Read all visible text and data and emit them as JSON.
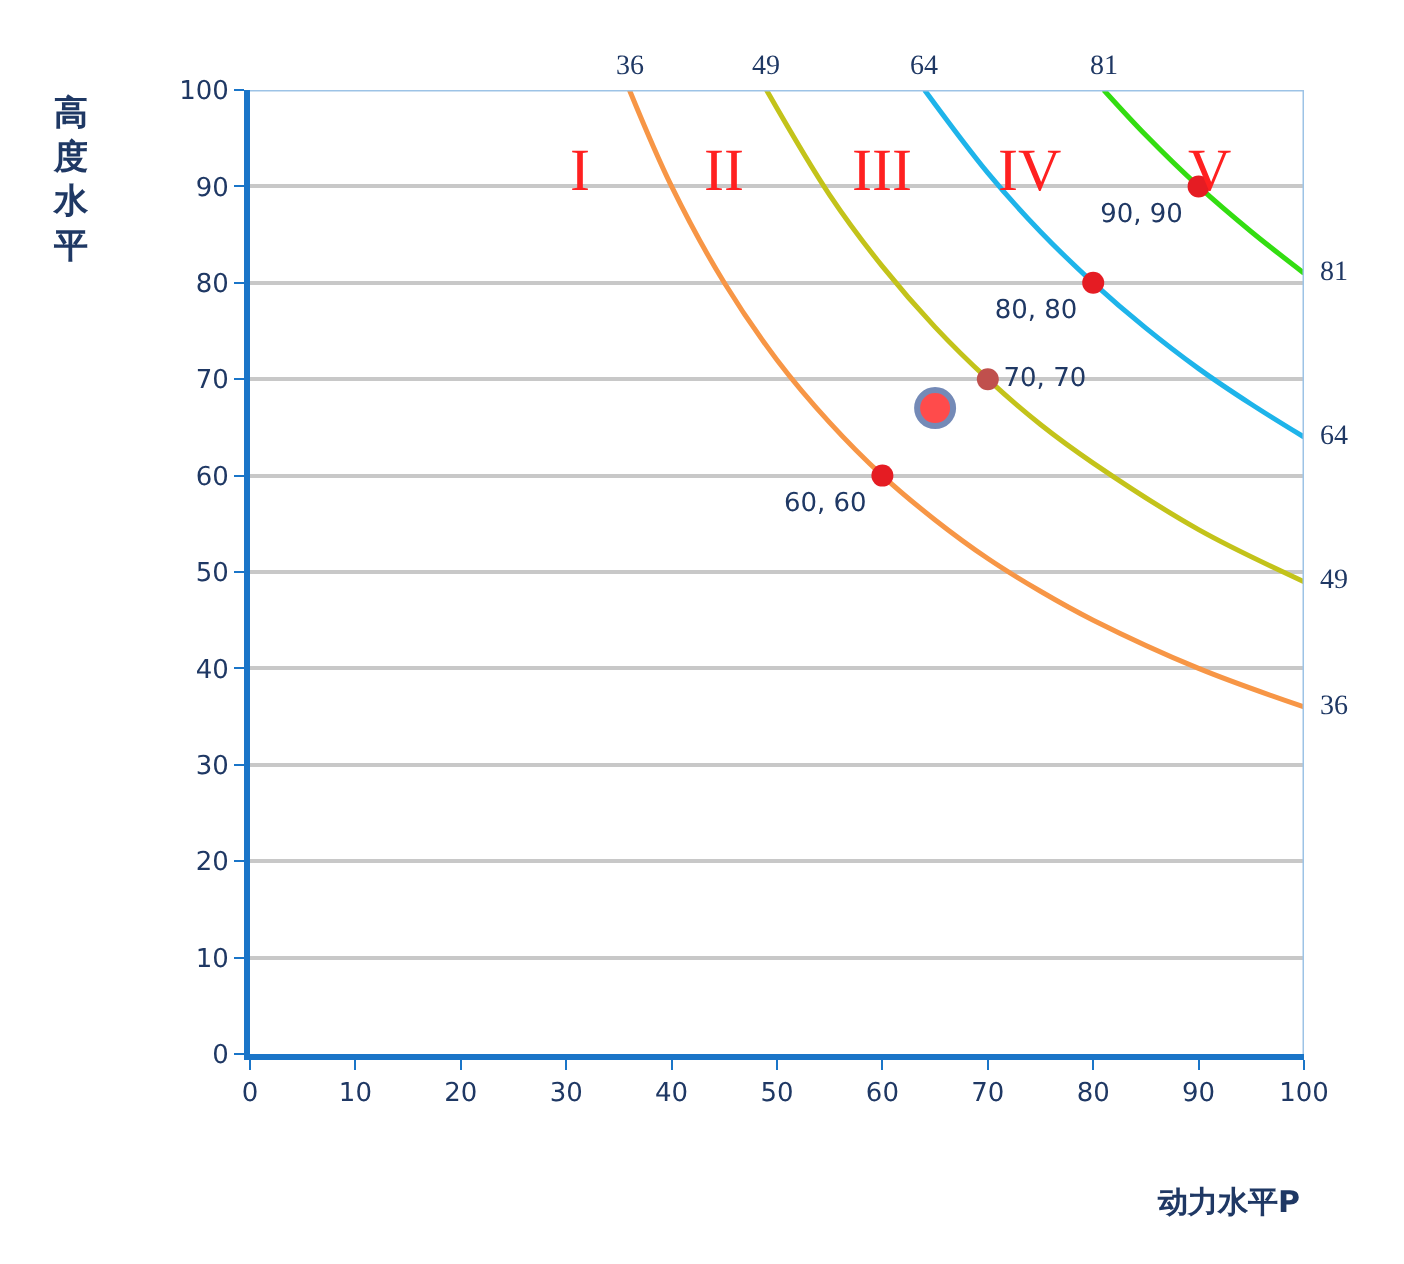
{
  "chart_data": {
    "type": "line",
    "xlabel": "动力水平P",
    "ylabel": "高度水平",
    "xlim": [
      0,
      100
    ],
    "ylim": [
      0,
      100
    ],
    "xticks": [
      0,
      10,
      20,
      30,
      40,
      50,
      60,
      70,
      80,
      90,
      100
    ],
    "yticks": [
      0,
      10,
      20,
      30,
      40,
      50,
      60,
      70,
      80,
      90,
      100
    ],
    "grid": "y",
    "legend": false,
    "series": [
      {
        "color": "#f79646",
        "marker": "none",
        "x": [
          36,
          40,
          45,
          50,
          55,
          60,
          65,
          70,
          75,
          80,
          90,
          100
        ],
        "values": [
          100,
          90,
          80,
          72,
          65.5,
          60,
          55.4,
          51.4,
          48,
          45,
          40,
          36
        ]
      },
      {
        "color": "#c3c31a",
        "marker": "none",
        "x": [
          49,
          55,
          60,
          65,
          70,
          75,
          80,
          90,
          100
        ],
        "values": [
          100,
          89.1,
          81.7,
          75.4,
          70,
          65.3,
          61.3,
          54.4,
          49
        ]
      },
      {
        "color": "#1eb4ea",
        "marker": "none",
        "x": [
          64,
          70,
          75,
          80,
          85,
          90,
          95,
          100
        ],
        "values": [
          100,
          91.4,
          85.3,
          80,
          75.3,
          71.1,
          67.4,
          64
        ]
      },
      {
        "color": "#33dd11",
        "marker": "none",
        "x": [
          81,
          85,
          90,
          95,
          100
        ],
        "values": [
          100,
          95.3,
          90,
          85.3,
          81
        ]
      },
      {
        "type": "scatter",
        "marker": "circle",
        "colors": [
          "#e51c23",
          "#c0504d",
          "#e51c23",
          "#e51c23"
        ],
        "x": [
          60,
          70,
          80,
          90
        ],
        "values": [
          60,
          70,
          80,
          90
        ],
        "value_labels": [
          "60, 60",
          "70, 70",
          "80, 80",
          "90, 90"
        ]
      },
      {
        "type": "bubble",
        "marker": "circle",
        "color": "#ff0000",
        "x": [
          65
        ],
        "values": [
          67
        ],
        "sizes": [
          1
        ]
      }
    ],
    "annotations": [
      {
        "text": "36",
        "x": 36,
        "y": 100
      },
      {
        "text": "49",
        "x": 49,
        "y": 100
      },
      {
        "text": "64",
        "x": 64,
        "y": 100
      },
      {
        "text": "81",
        "x": 81,
        "y": 100
      },
      {
        "text": "81",
        "x": 100,
        "y": 81
      },
      {
        "text": "64",
        "x": 100,
        "y": 64
      },
      {
        "text": "49",
        "x": 100,
        "y": 49
      },
      {
        "text": "36",
        "x": 100,
        "y": 36
      },
      "I",
      "II",
      "III",
      "IV",
      "V"
    ]
  }
}
